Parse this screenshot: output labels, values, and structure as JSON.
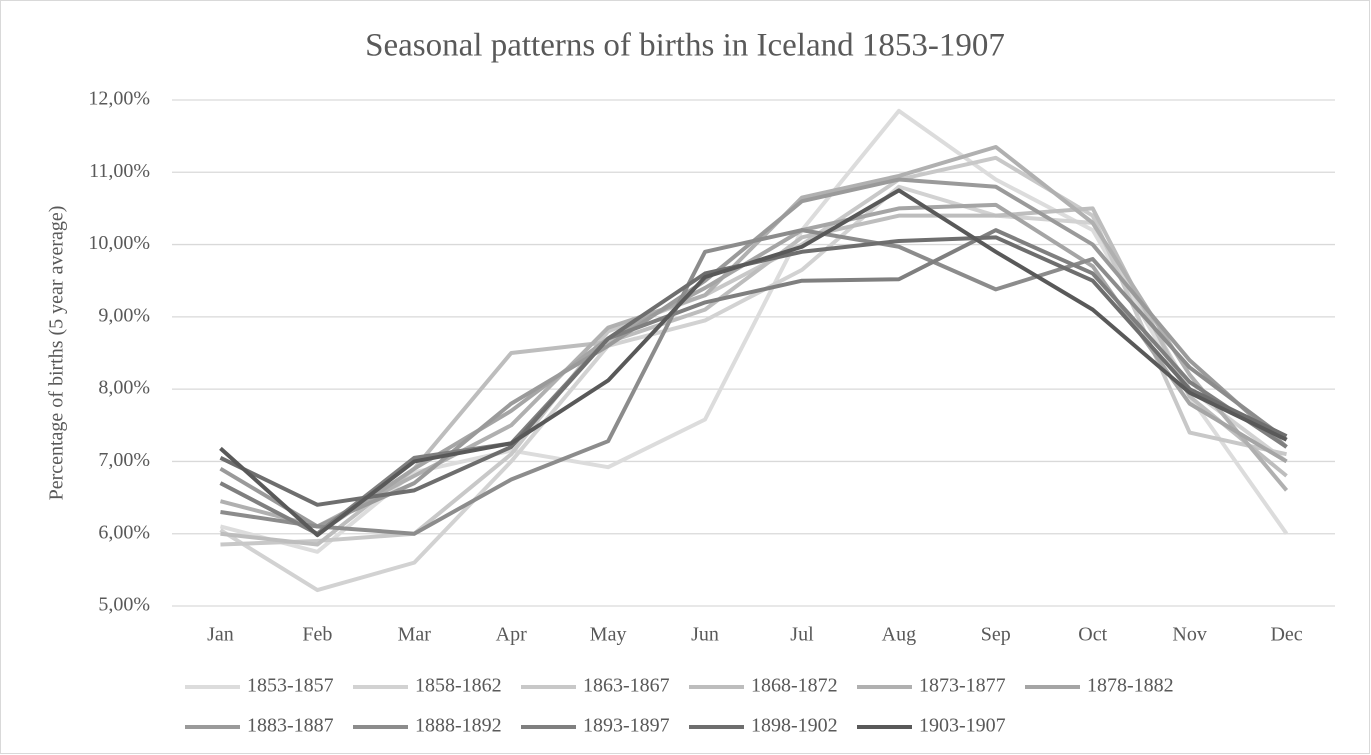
{
  "chart_data": {
    "type": "line",
    "title": "Seasonal patterns of births in Iceland 1853-1907",
    "y_label": "Percentage of births (5 year  average)",
    "categories": [
      "Jan",
      "Feb",
      "Mar",
      "Apr",
      "May",
      "Jun",
      "Jul",
      "Aug",
      "Sep",
      "Oct",
      "Nov",
      "Dec"
    ],
    "ylim": [
      5,
      12
    ],
    "yticks": [
      {
        "value": 5,
        "label": "5,00%"
      },
      {
        "value": 6,
        "label": "6,00%"
      },
      {
        "value": 7,
        "label": "7,00%"
      },
      {
        "value": 8,
        "label": "8,00%"
      },
      {
        "value": 9,
        "label": "9,00%"
      },
      {
        "value": 10,
        "label": "10,00%"
      },
      {
        "value": 11,
        "label": "11,00%"
      },
      {
        "value": 12,
        "label": "12,00%"
      }
    ],
    "grid": true,
    "legend": "bottom",
    "series": [
      {
        "name": "1853-1857",
        "color": "#dcdcdc",
        "values": [
          6.1,
          5.75,
          6.85,
          7.15,
          6.92,
          7.58,
          10.2,
          11.85,
          10.9,
          10.2,
          7.9,
          6.0
        ]
      },
      {
        "name": "1858-1862",
        "color": "#d2d2d2",
        "values": [
          6.05,
          5.22,
          5.6,
          7.0,
          8.6,
          8.95,
          9.65,
          10.8,
          10.4,
          10.3,
          8.0,
          7.0
        ]
      },
      {
        "name": "1863-1867",
        "color": "#c8c8c8",
        "values": [
          5.85,
          5.9,
          6.0,
          7.1,
          8.8,
          9.3,
          10.0,
          10.9,
          11.2,
          10.4,
          7.4,
          7.1
        ]
      },
      {
        "name": "1868-1872",
        "color": "#bdbdbd",
        "values": [
          6.0,
          5.85,
          6.9,
          8.5,
          8.65,
          9.1,
          10.1,
          10.4,
          10.4,
          10.5,
          7.9,
          6.8
        ]
      },
      {
        "name": "1873-1877",
        "color": "#b0b0b0",
        "values": [
          6.45,
          6.1,
          6.8,
          7.5,
          8.85,
          9.3,
          10.65,
          10.95,
          11.35,
          10.3,
          8.2,
          6.6
        ]
      },
      {
        "name": "1878-1882",
        "color": "#a5a5a5",
        "values": [
          6.7,
          6.0,
          6.9,
          7.7,
          8.7,
          9.4,
          10.2,
          10.5,
          10.55,
          9.7,
          7.8,
          7.0
        ]
      },
      {
        "name": "1883-1887",
        "color": "#9a9a9a",
        "values": [
          6.9,
          6.1,
          6.7,
          7.8,
          8.6,
          9.5,
          10.6,
          10.9,
          10.8,
          10.0,
          8.4,
          7.2
        ]
      },
      {
        "name": "1888-1892",
        "color": "#8c8c8c",
        "values": [
          6.3,
          6.1,
          6.0,
          6.75,
          7.28,
          9.9,
          10.2,
          9.97,
          9.38,
          9.8,
          8.3,
          7.3
        ]
      },
      {
        "name": "1893-1897",
        "color": "#7f7f7f",
        "values": [
          6.7,
          6.0,
          7.05,
          7.25,
          8.7,
          9.2,
          9.5,
          9.52,
          10.2,
          9.6,
          8.1,
          7.2
        ]
      },
      {
        "name": "1898-1902",
        "color": "#6e6e6e",
        "values": [
          7.05,
          6.4,
          6.6,
          7.2,
          8.7,
          9.6,
          9.9,
          10.05,
          10.1,
          9.5,
          8.0,
          7.35
        ]
      },
      {
        "name": "1903-1907",
        "color": "#595959",
        "values": [
          7.18,
          5.98,
          7.0,
          7.25,
          8.12,
          9.55,
          9.97,
          10.75,
          9.9,
          9.1,
          7.95,
          7.3
        ]
      }
    ]
  }
}
